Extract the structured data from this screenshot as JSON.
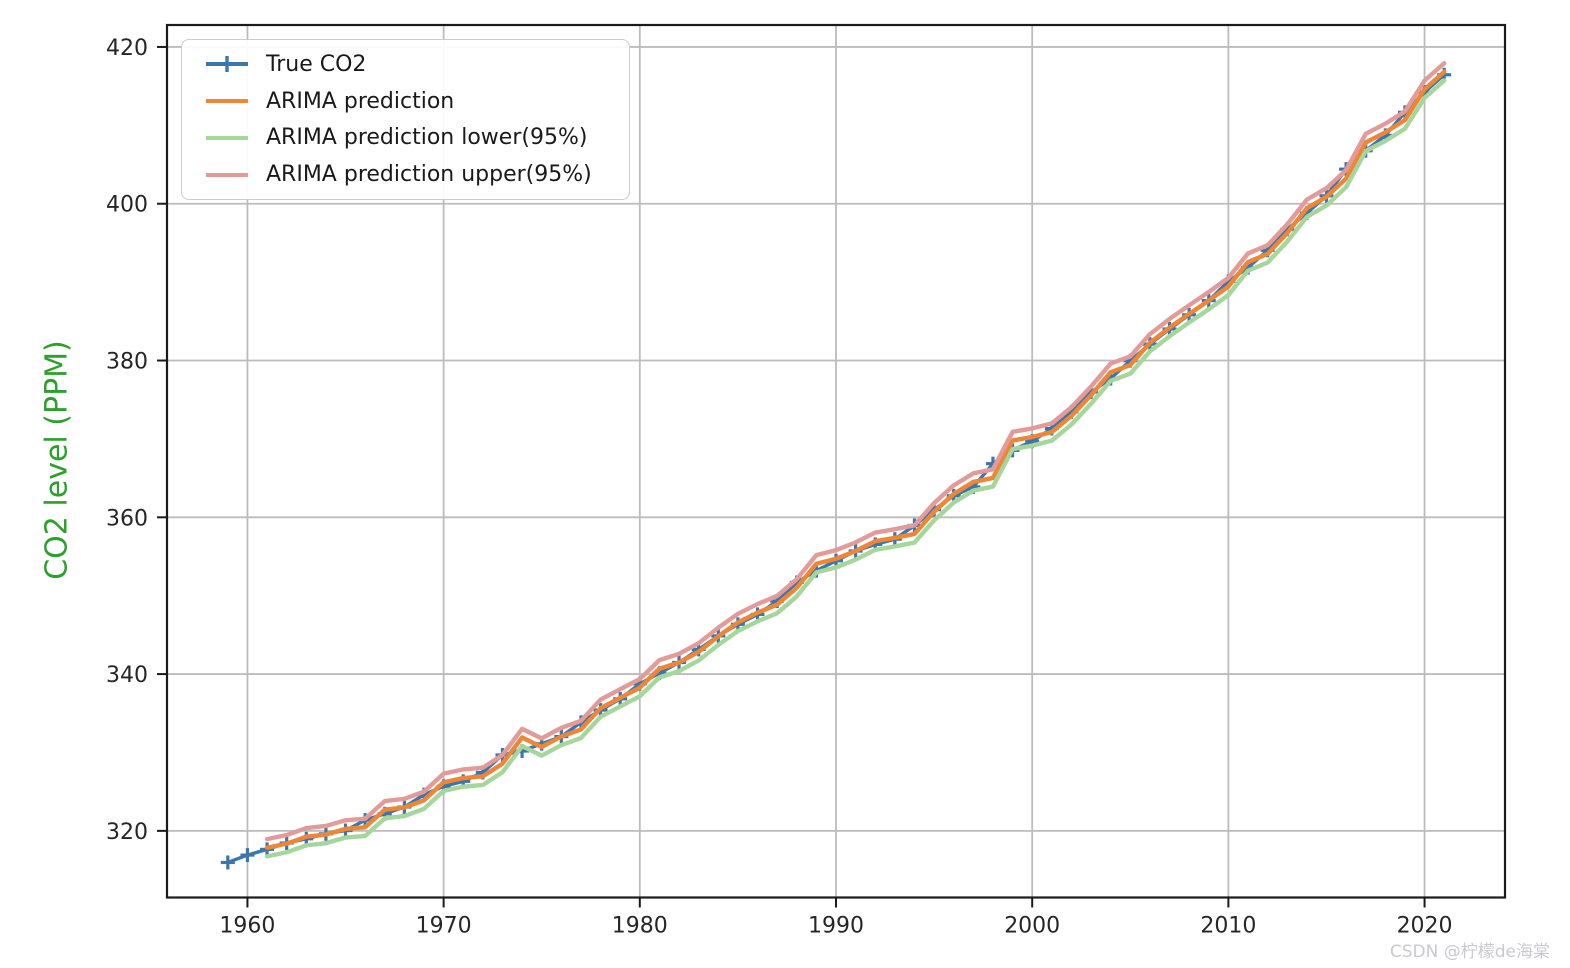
{
  "figure": {
    "watermark": "CSDN @柠檬de海棠"
  },
  "chart_data": {
    "type": "line",
    "title": "",
    "xlabel": "",
    "ylabel": "CO2 level (PPM)",
    "ylabel_color": "#2ca02c",
    "axis_text_color": "#262626",
    "grid": true,
    "grid_color": "#bcbcbc",
    "legend_position": "upper-left",
    "x_unit": "year",
    "xlim": [
      1955.9,
      2024.1
    ],
    "ylim": [
      311.5,
      422.8
    ],
    "x_ticks": [
      1960,
      1970,
      1980,
      1990,
      2000,
      2010,
      2020
    ],
    "y_ticks": [
      320,
      340,
      360,
      380,
      400,
      420
    ],
    "series": [
      {
        "name": "True CO2",
        "color": "#3b76af",
        "marker": "plus",
        "line_width": 3.4,
        "x_start": 1959,
        "values": [
          315.97,
          316.91,
          317.64,
          318.45,
          318.99,
          319.62,
          320.04,
          321.37,
          322.18,
          323.04,
          324.62,
          325.68,
          326.32,
          327.45,
          329.68,
          330.19,
          331.12,
          332.03,
          333.84,
          335.41,
          336.84,
          338.76,
          340.12,
          341.48,
          343.15,
          344.87,
          346.35,
          347.61,
          349.31,
          351.69,
          353.2,
          354.45,
          355.7,
          356.54,
          357.21,
          358.96,
          360.97,
          362.74,
          363.88,
          366.84,
          368.54,
          369.71,
          371.32,
          373.45,
          375.98,
          377.7,
          379.98,
          382.09,
          384.02,
          385.83,
          387.64,
          390.1,
          391.85,
          394.06,
          396.74,
          398.81,
          401.01,
          404.41,
          406.76,
          408.72,
          411.66,
          414.24,
          416.45
        ]
      },
      {
        "name": "ARIMA prediction",
        "color": "#ef8636",
        "marker": null,
        "line_width": 4.4,
        "x_start": 1961,
        "values": [
          317.85,
          318.37,
          319.26,
          319.53,
          320.25,
          320.46,
          322.7,
          322.99,
          323.9,
          326.2,
          326.74,
          326.96,
          328.58,
          331.91,
          330.7,
          332.05,
          332.94,
          335.65,
          336.98,
          338.27,
          340.68,
          341.48,
          342.84,
          344.82,
          346.59,
          347.83,
          348.87,
          351.01,
          354.07,
          354.71,
          355.7,
          356.95,
          357.38,
          357.88,
          360.71,
          362.98,
          364.51,
          365.02,
          369.8,
          370.24,
          370.88,
          372.93,
          375.58,
          378.51,
          379.42,
          382.26,
          384.2,
          385.95,
          387.64,
          389.45,
          392.56,
          393.6,
          396.27,
          399.42,
          400.88,
          403.21,
          407.81,
          409.11,
          410.68,
          414.6,
          416.82
        ]
      },
      {
        "name": "ARIMA prediction lower(95%)",
        "color": "#a5d69b",
        "marker": null,
        "line_width": 4.4,
        "x_start": 1961,
        "values": [
          316.75,
          317.27,
          318.16,
          318.43,
          319.15,
          319.36,
          321.6,
          321.89,
          322.8,
          325.1,
          325.64,
          325.86,
          327.48,
          330.81,
          329.6,
          330.95,
          331.84,
          334.55,
          335.88,
          337.17,
          339.58,
          340.38,
          341.74,
          343.72,
          345.49,
          346.73,
          347.77,
          349.91,
          352.97,
          353.61,
          354.6,
          355.85,
          356.28,
          356.78,
          359.61,
          361.88,
          363.41,
          363.92,
          368.7,
          369.14,
          369.78,
          371.83,
          374.48,
          377.41,
          378.32,
          381.16,
          383.1,
          384.85,
          386.54,
          388.35,
          391.46,
          392.5,
          395.17,
          398.32,
          399.78,
          402.11,
          406.71,
          408.01,
          409.58,
          413.5,
          415.72
        ]
      },
      {
        "name": "ARIMA prediction upper(95%)",
        "color": "#e39b9a",
        "marker": null,
        "line_width": 4.4,
        "x_start": 1961,
        "values": [
          318.95,
          319.47,
          320.36,
          320.63,
          321.35,
          321.56,
          323.8,
          324.09,
          325.0,
          327.3,
          327.84,
          328.06,
          329.68,
          333.01,
          331.8,
          333.15,
          334.04,
          336.75,
          338.08,
          339.37,
          341.78,
          342.58,
          343.94,
          345.92,
          347.69,
          348.93,
          349.97,
          352.11,
          355.17,
          355.81,
          356.8,
          358.05,
          358.48,
          358.98,
          361.81,
          364.08,
          365.61,
          366.12,
          370.9,
          371.34,
          371.98,
          374.03,
          376.68,
          379.61,
          380.52,
          383.36,
          385.3,
          387.05,
          388.74,
          390.55,
          393.66,
          394.7,
          397.37,
          400.52,
          401.98,
          404.31,
          408.91,
          410.21,
          411.78,
          415.7,
          417.92
        ]
      }
    ]
  }
}
